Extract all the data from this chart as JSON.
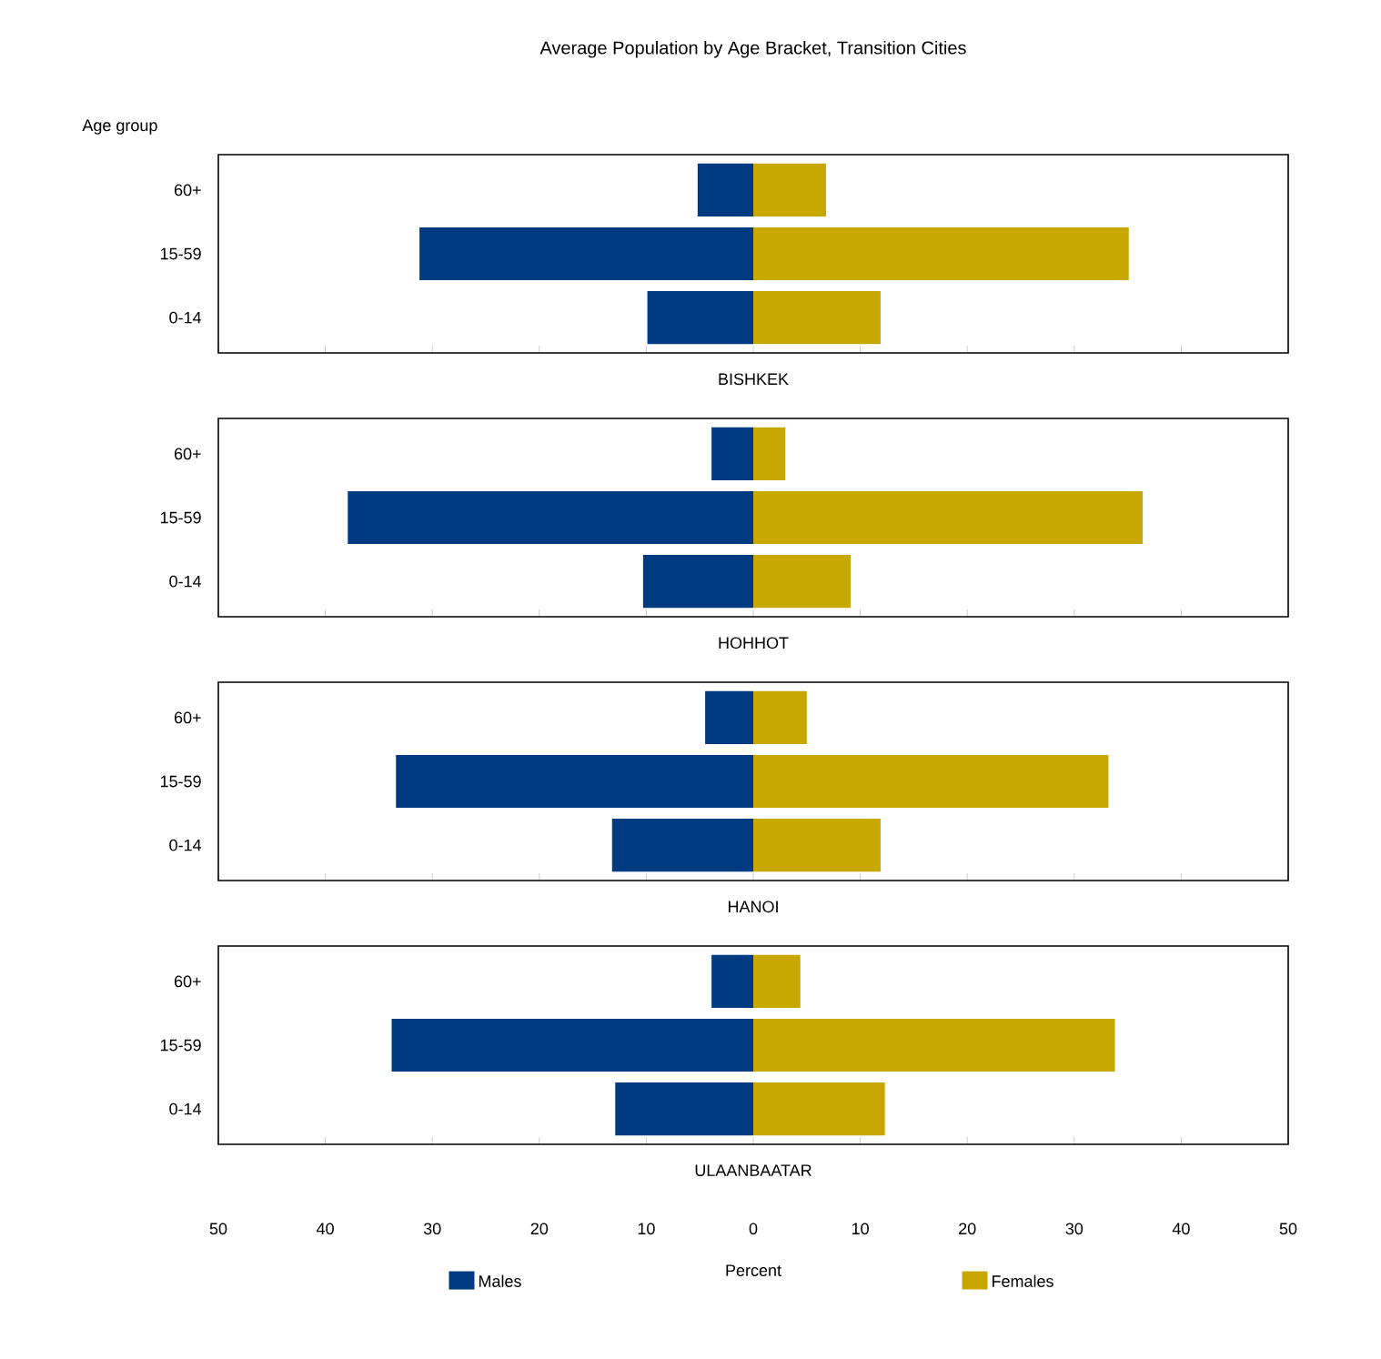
{
  "chart_data": [
    {
      "type": "bar",
      "orientation": "horizontal",
      "stacked": true,
      "title": "Average Population by Age Bracket, Transition Cities",
      "subtitle": "BISHKEK",
      "ylabel": "Age group",
      "categories": [
        "60+",
        "15-59",
        "0-14"
      ],
      "series": [
        {
          "color": "#003a80",
          "values": [
            -5.2,
            -31.2,
            -9.9
          ]
        },
        {
          "color": "#c8a800",
          "values": [
            6.8,
            35.1,
            11.9
          ]
        }
      ],
      "xlim": [
        -50,
        50
      ],
      "xticks": [
        {
          "value": -50,
          "label": null
        },
        {
          "value": -40,
          "label": null
        },
        {
          "value": -30,
          "label": null
        },
        {
          "value": -20,
          "label": null
        },
        {
          "value": -10,
          "label": null
        },
        {
          "value": 0,
          "label": null
        },
        {
          "value": 10,
          "label": null
        },
        {
          "value": 20,
          "label": null
        },
        {
          "value": 30,
          "label": null
        },
        {
          "value": 40,
          "label": null
        },
        {
          "value": 50,
          "label": null
        }
      ],
      "tick_labels": "y"
    },
    {
      "type": "bar",
      "orientation": "horizontal",
      "stacked": true,
      "subtitle": "HOHHOT",
      "categories": [
        "60+",
        "15-59",
        "0-14"
      ],
      "series": [
        {
          "color": "#003a80",
          "values": [
            -3.9,
            -37.9,
            -10.3
          ]
        },
        {
          "color": "#c8a800",
          "values": [
            3.0,
            36.4,
            9.1
          ]
        }
      ],
      "xlim": [
        -50,
        50
      ],
      "xticks": [
        {
          "value": -50,
          "label": null
        },
        {
          "value": -40,
          "label": null
        },
        {
          "value": -30,
          "label": null
        },
        {
          "value": -20,
          "label": null
        },
        {
          "value": -10,
          "label": null
        },
        {
          "value": 0,
          "label": null
        },
        {
          "value": 10,
          "label": null
        },
        {
          "value": 20,
          "label": null
        },
        {
          "value": 30,
          "label": null
        },
        {
          "value": 40,
          "label": null
        },
        {
          "value": 50,
          "label": null
        }
      ],
      "tick_labels": "y"
    },
    {
      "type": "bar",
      "orientation": "horizontal",
      "stacked": true,
      "subtitle": "HANOI",
      "categories": [
        "60+",
        "15-59",
        "0-14"
      ],
      "series": [
        {
          "color": "#003a80",
          "values": [
            -4.5,
            -33.4,
            -13.2
          ]
        },
        {
          "color": "#c8a800",
          "values": [
            5.0,
            33.2,
            11.9
          ]
        }
      ],
      "xlim": [
        -50,
        50
      ],
      "xticks": [
        {
          "value": -50,
          "label": null
        },
        {
          "value": -40,
          "label": null
        },
        {
          "value": -30,
          "label": null
        },
        {
          "value": -20,
          "label": null
        },
        {
          "value": -10,
          "label": null
        },
        {
          "value": 0,
          "label": null
        },
        {
          "value": 10,
          "label": null
        },
        {
          "value": 20,
          "label": null
        },
        {
          "value": 30,
          "label": null
        },
        {
          "value": 40,
          "label": null
        },
        {
          "value": 50,
          "label": null
        }
      ],
      "tick_labels": "y"
    },
    {
      "type": "bar",
      "orientation": "horizontal",
      "stacked": true,
      "subtitle": "ULAANBAATAR",
      "xlabel": "Percent",
      "categories": [
        "60+",
        "15-59",
        "0-14"
      ],
      "series": [
        {
          "name": "Males",
          "color": "#003a80",
          "values": [
            -3.9,
            -33.8,
            -12.9
          ]
        },
        {
          "name": "Females",
          "color": "#c8a800",
          "values": [
            4.4,
            33.8,
            12.3
          ]
        }
      ],
      "xlim": [
        -50,
        50
      ],
      "xticks": [
        {
          "value": -50,
          "label": "50"
        },
        {
          "value": -40,
          "label": "40"
        },
        {
          "value": -30,
          "label": "30"
        },
        {
          "value": -20,
          "label": "20"
        },
        {
          "value": -10,
          "label": "10"
        },
        0,
        10,
        20,
        30,
        40,
        50
      ],
      "legend": "bottom"
    }
  ]
}
